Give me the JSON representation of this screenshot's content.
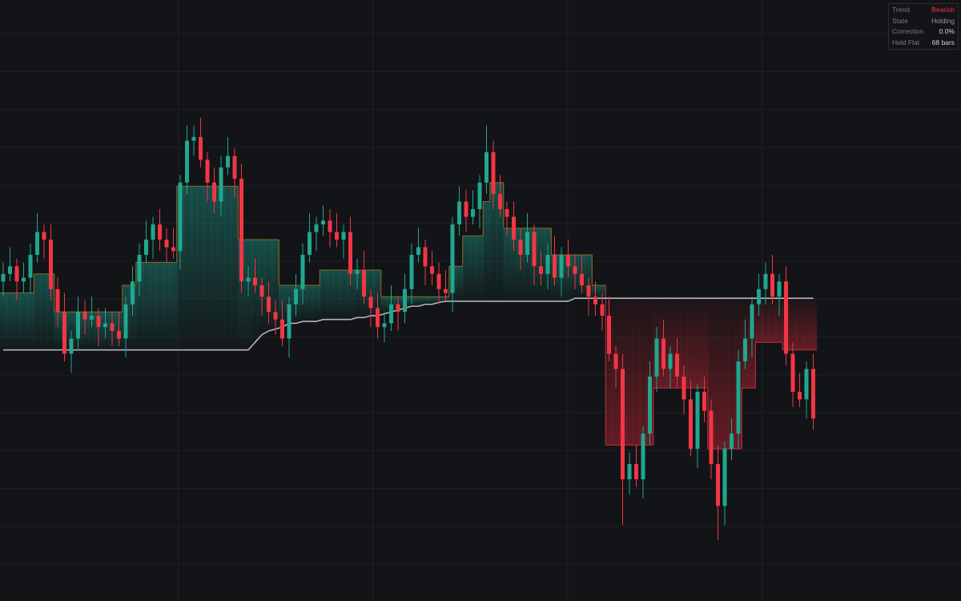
{
  "chart_data": {
    "type": "candlestick",
    "ylim": [
      -9,
      149
    ],
    "grid": true,
    "up_color": "#22a68f",
    "down_color": "#f23645",
    "baseline_color": "#b2b5be",
    "open": [
      75,
      77,
      79,
      75,
      76,
      82,
      88,
      86,
      73,
      67,
      56,
      60,
      67,
      65,
      66,
      63,
      64,
      62,
      60,
      69,
      75,
      82,
      86,
      90,
      86,
      84,
      83,
      101,
      112,
      113,
      107,
      101,
      96,
      105,
      108,
      102,
      75,
      76,
      74,
      71,
      67,
      65,
      60,
      69,
      73,
      82,
      88,
      90,
      91,
      88,
      86,
      88,
      77,
      78,
      71,
      68,
      63,
      64,
      69,
      67,
      73,
      82,
      84,
      79,
      77,
      73,
      72,
      90,
      96,
      92,
      94,
      101,
      109,
      98,
      94,
      92,
      86,
      82,
      88,
      79,
      77,
      82,
      76,
      82,
      79,
      77,
      74,
      71,
      69,
      66,
      56,
      52,
      23,
      27,
      23,
      35,
      50,
      60,
      52,
      56,
      50,
      44,
      31,
      46,
      41,
      27,
      16,
      31,
      35,
      54,
      60,
      69,
      73,
      77,
      71,
      75,
      56,
      46,
      44,
      52
    ],
    "high": [
      80,
      84,
      81,
      80,
      85,
      93,
      90,
      90,
      76,
      72,
      62,
      71,
      70,
      71,
      68,
      68,
      67,
      67,
      71,
      79,
      85,
      91,
      92,
      94,
      89,
      89,
      103,
      116,
      116,
      118,
      109,
      105,
      108,
      113,
      110,
      106,
      79,
      81,
      76,
      75,
      70,
      70,
      71,
      77,
      85,
      93,
      92,
      95,
      94,
      93,
      90,
      92,
      81,
      83,
      73,
      72,
      67,
      74,
      71,
      77,
      85,
      89,
      86,
      83,
      80,
      78,
      92,
      100,
      99,
      99,
      103,
      116,
      112,
      103,
      96,
      96,
      89,
      93,
      90,
      83,
      85,
      87,
      84,
      86,
      82,
      82,
      76,
      75,
      72,
      71,
      58,
      56,
      30,
      32,
      37,
      54,
      63,
      65,
      58,
      60,
      53,
      49,
      48,
      50,
      44,
      32,
      33,
      39,
      57,
      65,
      71,
      77,
      80,
      82,
      77,
      79,
      59,
      51,
      54,
      56
    ],
    "low": [
      71,
      75,
      70,
      72,
      72,
      80,
      81,
      70,
      63,
      54,
      51,
      57,
      61,
      63,
      58,
      60,
      58,
      58,
      55,
      66,
      71,
      80,
      81,
      83,
      80,
      81,
      78,
      98,
      108,
      105,
      96,
      93,
      92,
      103,
      97,
      72,
      71,
      72,
      66,
      64,
      61,
      58,
      55,
      66,
      69,
      80,
      83,
      87,
      84,
      84,
      81,
      74,
      73,
      69,
      63,
      60,
      59,
      62,
      62,
      64,
      69,
      80,
      74,
      74,
      69,
      70,
      67,
      87,
      88,
      90,
      89,
      98,
      94,
      92,
      87,
      83,
      78,
      80,
      74,
      74,
      73,
      74,
      71,
      76,
      73,
      72,
      66,
      66,
      62,
      54,
      47,
      11,
      19,
      21,
      18,
      32,
      46,
      50,
      47,
      47,
      40,
      29,
      26,
      38,
      23,
      7,
      11,
      28,
      31,
      52,
      55,
      66,
      69,
      69,
      66,
      53,
      42,
      42,
      39,
      36
    ],
    "close": [
      77,
      79,
      75,
      76,
      82,
      88,
      86,
      73,
      67,
      56,
      60,
      67,
      65,
      66,
      63,
      64,
      62,
      60,
      69,
      75,
      82,
      86,
      90,
      86,
      84,
      83,
      101,
      112,
      113,
      107,
      101,
      96,
      105,
      108,
      102,
      75,
      76,
      74,
      71,
      67,
      65,
      60,
      69,
      73,
      82,
      88,
      90,
      91,
      88,
      86,
      88,
      77,
      78,
      71,
      68,
      63,
      64,
      69,
      67,
      73,
      82,
      84,
      79,
      77,
      73,
      72,
      90,
      96,
      92,
      94,
      101,
      109,
      98,
      94,
      92,
      86,
      82,
      88,
      79,
      77,
      82,
      76,
      82,
      79,
      77,
      74,
      71,
      69,
      66,
      56,
      52,
      23,
      27,
      23,
      35,
      50,
      60,
      52,
      56,
      50,
      44,
      31,
      46,
      41,
      27,
      16,
      31,
      35,
      54,
      60,
      69,
      73,
      77,
      71,
      75,
      56,
      46,
      44,
      52,
      39
    ],
    "stop": [
      72,
      72,
      72,
      72,
      72,
      77,
      77,
      77,
      67,
      67,
      67,
      67,
      67,
      67,
      67,
      67,
      67,
      67,
      74,
      74,
      80,
      80,
      80,
      80,
      80,
      80,
      100,
      100,
      100,
      100,
      100,
      100,
      100,
      100,
      100,
      86,
      86,
      86,
      86,
      86,
      86,
      74,
      74,
      74,
      74,
      74,
      74,
      78,
      78,
      78,
      78,
      78,
      78,
      78,
      78,
      78,
      71,
      71,
      71,
      71,
      71,
      71,
      71,
      71,
      71,
      71,
      79,
      79,
      87,
      87,
      87,
      96,
      101,
      101,
      89,
      89,
      89,
      89,
      89,
      89,
      89,
      82,
      82,
      82,
      82,
      82,
      82,
      74,
      74,
      32,
      32,
      32,
      32,
      32,
      32,
      32,
      47,
      47,
      47,
      47,
      47,
      47,
      47,
      47,
      31,
      31,
      31,
      31,
      31,
      47,
      47,
      59,
      59,
      59,
      59,
      57,
      57,
      57,
      57,
      57
    ],
    "baseline": [
      57,
      57,
      57,
      57,
      57,
      57,
      57,
      57,
      57,
      57,
      57,
      57,
      57,
      57,
      57,
      57,
      57,
      57,
      57,
      57,
      57,
      57,
      57,
      57,
      57,
      57,
      57,
      57,
      57,
      57,
      57,
      57,
      57,
      57,
      57,
      57,
      57,
      59,
      61,
      62,
      62.5,
      63,
      64,
      64,
      64.5,
      64.5,
      64.5,
      65,
      65,
      65,
      65,
      65,
      65.5,
      65.5,
      66,
      66,
      66.5,
      67,
      67.5,
      68,
      68.5,
      68.5,
      69,
      69,
      69.5,
      69.8,
      69.8,
      69.8,
      69.8,
      69.8,
      69.8,
      69.8,
      69.8,
      69.8,
      69.8,
      69.8,
      69.8,
      69.8,
      69.8,
      69.8,
      69.8,
      69.8,
      69.8,
      69.8,
      70.6,
      70.6,
      70.6,
      70.6,
      70.6,
      70.6,
      70.6,
      70.6,
      70.6,
      70.6,
      70.6,
      70.6,
      70.6,
      70.6,
      70.6,
      70.6,
      70.6,
      70.6,
      70.6,
      70.6,
      70.6,
      70.6,
      70.6,
      70.6,
      70.6,
      70.6,
      70.6,
      70.6,
      70.6,
      70.6,
      70.6,
      70.6,
      70.6,
      70.6,
      70.6,
      70.6
    ]
  },
  "info_panel": {
    "rows": [
      {
        "label": "Trend",
        "value": "Bearish"
      },
      {
        "label": "State",
        "value": "Holding"
      },
      {
        "label": "Correction",
        "value": "0.0%"
      },
      {
        "label": "Held Flat",
        "value": "68 bars"
      }
    ]
  }
}
